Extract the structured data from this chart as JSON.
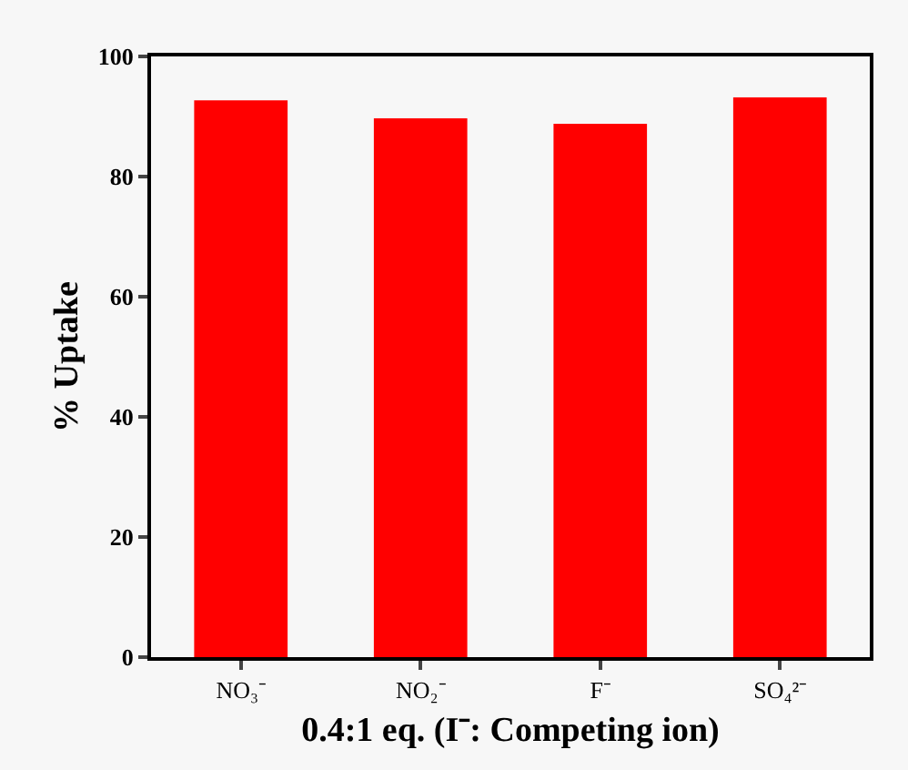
{
  "chart_data": {
    "type": "bar",
    "xlabel": "0.4:1 eq. (I⁻: Competing ion)",
    "ylabel": "% Uptake",
    "categories": [
      "NO₃⁻",
      "NO₂⁻",
      "F⁻",
      "SO₄²⁻"
    ],
    "values": [
      92.7,
      89.7,
      88.8,
      93.2
    ],
    "color": "#ff0000",
    "ylim": [
      0,
      100
    ],
    "yticks": [
      0,
      20,
      40,
      60,
      80,
      100
    ],
    "grid": false
  }
}
